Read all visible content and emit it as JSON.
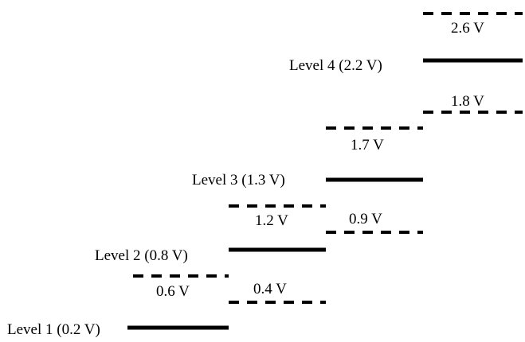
{
  "levels": [
    {
      "label": "Level 1 (0.2 V)",
      "voltage": 0.2
    },
    {
      "label": "Level 2 (0.8 V)",
      "voltage": 0.8
    },
    {
      "label": "Level 3 (1.3 V)",
      "voltage": 1.3
    },
    {
      "label": "Level 4 (2.2 V)",
      "voltage": 2.2
    }
  ],
  "thresholds": [
    {
      "label": "0.4 V",
      "voltage": 0.4
    },
    {
      "label": "0.6 V",
      "voltage": 0.6
    },
    {
      "label": "0.9 V",
      "voltage": 0.9
    },
    {
      "label": "1.2 V",
      "voltage": 1.2
    },
    {
      "label": "1.7 V",
      "voltage": 1.7
    },
    {
      "label": "1.8 V",
      "voltage": 1.8
    },
    {
      "label": "2.6 V",
      "voltage": 2.6
    }
  ]
}
